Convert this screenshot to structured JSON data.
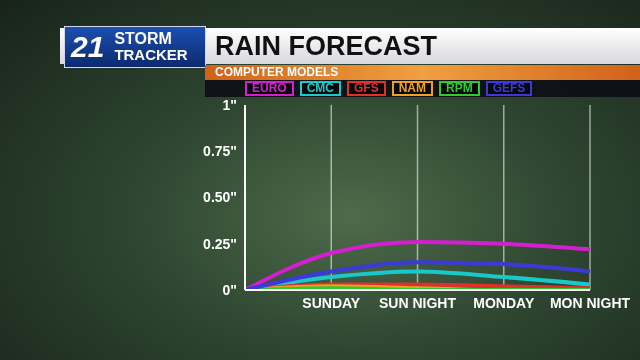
{
  "chart_data": {
    "type": "line",
    "title": "RAIN FORECAST",
    "subtitle": "COMPUTER MODELS",
    "annotations": [
      "21",
      "STORM",
      "TRACKER"
    ],
    "categories": [
      null,
      "SUNDAY",
      "SUN NIGHT",
      "MONDAY",
      "MON NIGHT"
    ],
    "series": [
      {
        "name": "EURO",
        "color": "#d41fd0",
        "values": [
          0,
          0.2,
          0.26,
          0.25,
          0.22
        ]
      },
      {
        "name": "CMC",
        "color": "#19c8c8",
        "values": [
          0,
          0.07,
          0.1,
          0.07,
          0.03
        ]
      },
      {
        "name": "GFS",
        "color": "#e0302a",
        "values": [
          0,
          0.03,
          0.03,
          0.02,
          0.01
        ]
      },
      {
        "name": "NAM",
        "color": "#f0a020",
        "values": [
          0,
          0.02,
          0.01,
          0,
          0
        ]
      },
      {
        "name": "RPM",
        "color": "#30c830",
        "values": [
          0,
          0.01,
          0,
          0,
          0
        ]
      },
      {
        "name": "GEFS",
        "color": "#3b3ad8",
        "values": [
          0,
          0.1,
          0.15,
          0.14,
          0.1
        ]
      }
    ],
    "ylim": [
      0,
      1
    ],
    "yticks": [
      {
        "value": 0,
        "label": "0\""
      },
      {
        "value": 0.25,
        "label": "0.25\""
      },
      {
        "value": 0.5,
        "label": "0.50\""
      },
      {
        "value": 0.75,
        "label": "0.75\""
      },
      {
        "value": 1,
        "label": "1\""
      }
    ],
    "grid": true
  }
}
